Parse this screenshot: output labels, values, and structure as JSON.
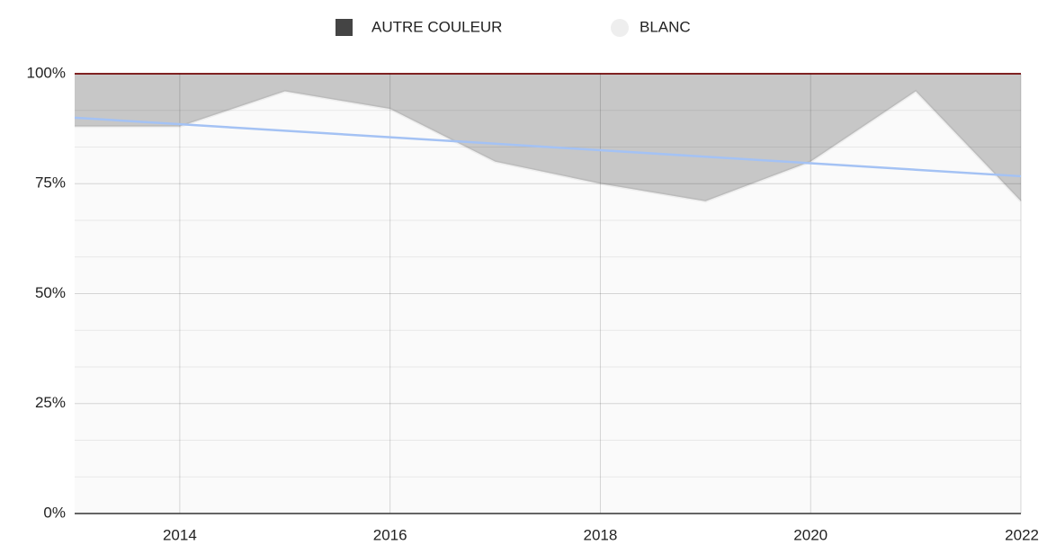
{
  "chart_data": {
    "type": "stacked_area",
    "x": [
      2013,
      2014,
      2015,
      2016,
      2017,
      2018,
      2019,
      2020,
      2021,
      2022
    ],
    "series": [
      {
        "name": "AUTRE COULEUR",
        "color": "#444444",
        "values": [
          12,
          12,
          4,
          8,
          20,
          25,
          29,
          20,
          4,
          29
        ]
      },
      {
        "name": "BLANC",
        "color": "#eeeeee",
        "values": [
          88,
          88,
          96,
          92,
          80,
          75,
          71,
          80,
          96,
          71
        ]
      }
    ],
    "top_line_color": "#8b2525",
    "trendline": {
      "color": "#a4c2f4",
      "x": [
        2013,
        2022
      ],
      "values": [
        90,
        76.7
      ]
    },
    "xlim": [
      2013,
      2022
    ],
    "xticks": [
      2014,
      2016,
      2018,
      2020,
      2022
    ],
    "ylim": [
      0,
      100
    ],
    "yticks": [
      {
        "value": 0,
        "label": "0%"
      },
      {
        "value": 25,
        "label": "25%"
      },
      {
        "value": 50,
        "label": "50%"
      },
      {
        "value": 75,
        "label": "75%"
      },
      {
        "value": 100,
        "label": "100%"
      }
    ],
    "grid": true,
    "legend": "top"
  }
}
